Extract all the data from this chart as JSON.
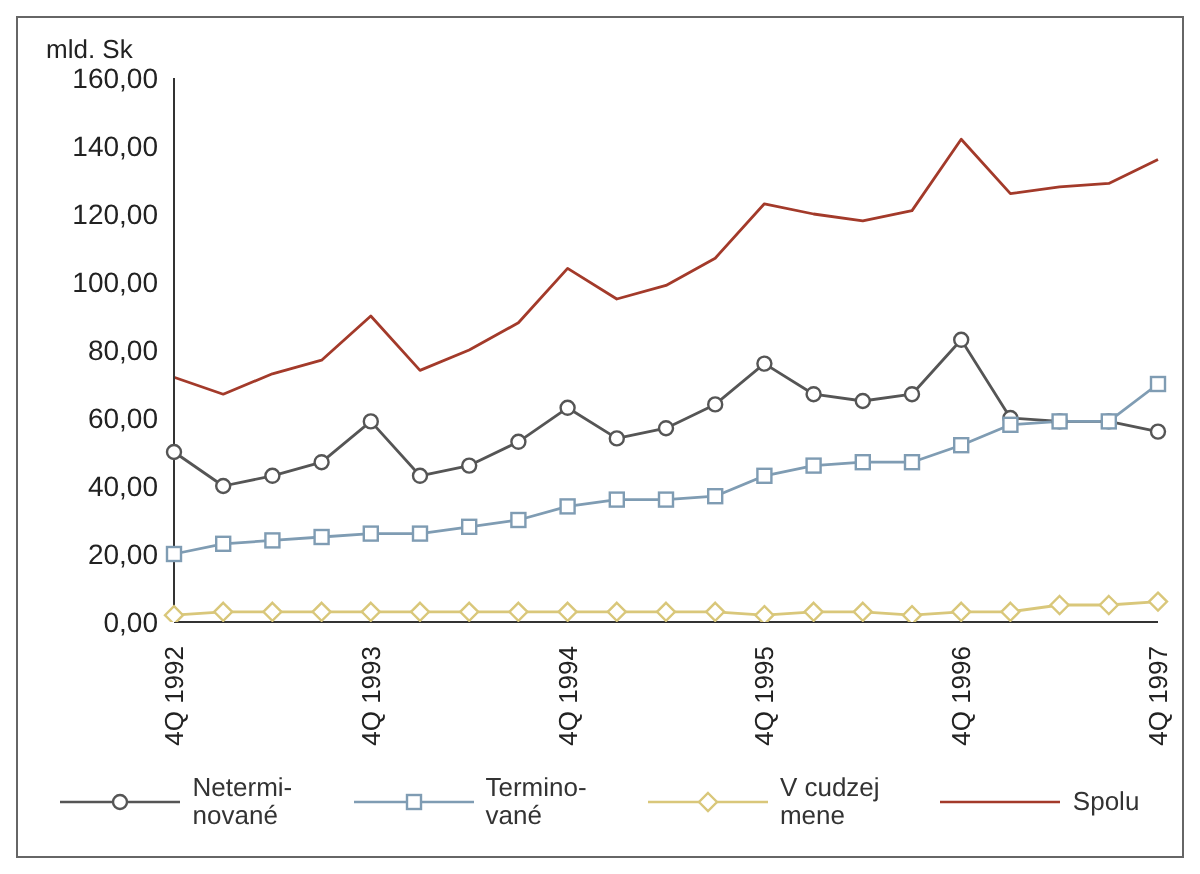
{
  "chart_data": {
    "type": "line",
    "ylabel": "mld. Sk",
    "categories": [
      "4Q 1992",
      null,
      null,
      null,
      "4Q 1993",
      null,
      null,
      null,
      "4Q 1994",
      null,
      null,
      null,
      "4Q 1995",
      null,
      null,
      null,
      "4Q 1996",
      null,
      null,
      null,
      "4Q 1997"
    ],
    "series": [
      {
        "name": "Netermi-\nnované",
        "color": "#555555",
        "marker": "circle",
        "values": [
          50,
          40,
          43,
          47,
          59,
          43,
          46,
          53,
          63,
          54,
          57,
          64,
          76,
          67,
          65,
          67,
          83,
          60,
          59,
          59,
          56
        ]
      },
      {
        "name": "Termino-\nvané",
        "color": "#7f9cb3",
        "marker": "square",
        "values": [
          20,
          23,
          24,
          25,
          26,
          26,
          28,
          30,
          34,
          36,
          36,
          37,
          43,
          46,
          47,
          47,
          52,
          58,
          59,
          59,
          70
        ]
      },
      {
        "name": "V cudzej\nmene",
        "color": "#d9c77a",
        "marker": "diamond",
        "values": [
          2,
          3,
          3,
          3,
          3,
          3,
          3,
          3,
          3,
          3,
          3,
          3,
          2,
          3,
          3,
          2,
          3,
          3,
          5,
          5,
          6
        ]
      },
      {
        "name": "Spolu",
        "color": "#a33a2a",
        "marker": "none",
        "values": [
          72,
          67,
          73,
          77,
          90,
          74,
          80,
          88,
          104,
          95,
          99,
          107,
          123,
          120,
          118,
          121,
          142,
          126,
          128,
          129,
          136
        ]
      }
    ],
    "ylim": [
      0,
      160
    ],
    "yticks": [
      {
        "value": 0,
        "label": "0,00"
      },
      {
        "value": 20,
        "label": "20,00"
      },
      {
        "value": 40,
        "label": "40,00"
      },
      {
        "value": 60,
        "label": "60,00"
      },
      {
        "value": 80,
        "label": "80,00"
      },
      {
        "value": 100,
        "label": "100,00"
      },
      {
        "value": 120,
        "label": "120,00"
      },
      {
        "value": 140,
        "label": "140,00"
      },
      {
        "value": 160,
        "label": "160,00"
      }
    ],
    "grid": false,
    "legend": "bottom"
  }
}
